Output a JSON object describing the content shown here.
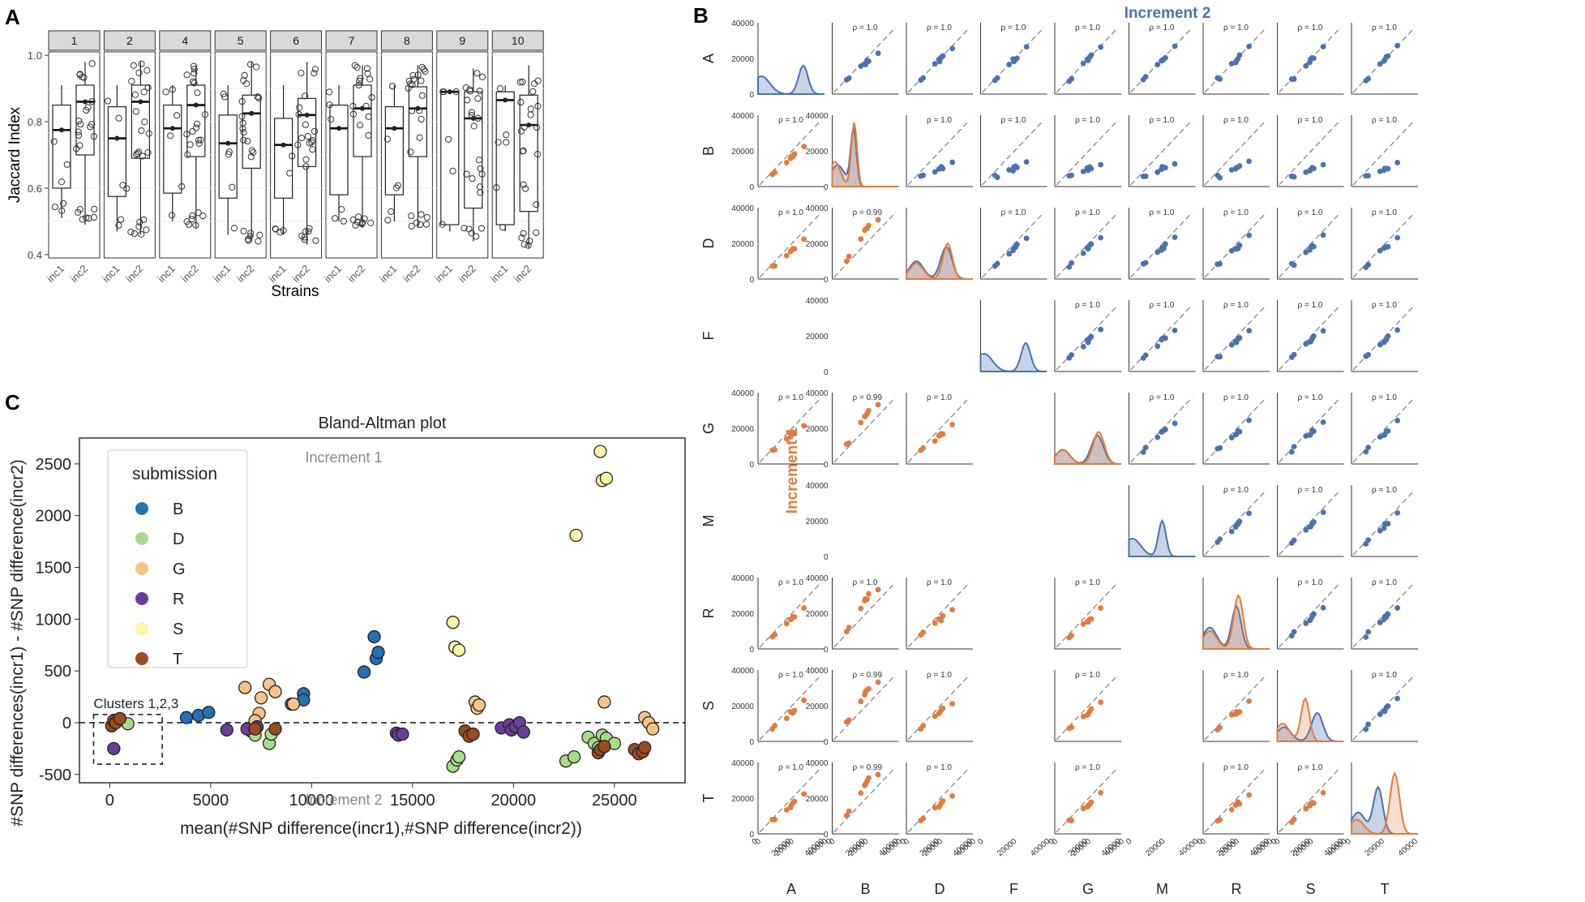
{
  "panel_labels": {
    "a": "A",
    "b": "B",
    "c": "C"
  },
  "chart_data": [
    {
      "panel": "A",
      "type": "box",
      "facets": [
        "1",
        "2",
        "4",
        "5",
        "6",
        "7",
        "8",
        "9",
        "10"
      ],
      "groups": [
        "inc1",
        "inc2"
      ],
      "xlabel": "Strains",
      "ylabel": "Jaccard Index",
      "ylim": [
        0.39,
        1.01
      ],
      "yticks": [
        "0.4",
        "0.6",
        "0.8",
        "1.0"
      ],
      "boxes": [
        [
          {
            "q1": 0.6,
            "med": 0.775,
            "q3": 0.85,
            "lo": 0.51,
            "hi": 0.91
          },
          {
            "q1": 0.7,
            "med": 0.86,
            "q3": 0.91,
            "lo": 0.49,
            "hi": 0.98
          }
        ],
        [
          {
            "q1": 0.575,
            "med": 0.75,
            "q3": 0.845,
            "lo": 0.47,
            "hi": 0.91
          },
          {
            "q1": 0.69,
            "med": 0.86,
            "q3": 0.91,
            "lo": 0.46,
            "hi": 0.98
          }
        ],
        [
          {
            "q1": 0.585,
            "med": 0.78,
            "q3": 0.85,
            "lo": 0.5,
            "hi": 0.91
          },
          {
            "q1": 0.695,
            "med": 0.85,
            "q3": 0.91,
            "lo": 0.48,
            "hi": 0.97
          }
        ],
        [
          {
            "q1": 0.57,
            "med": 0.735,
            "q3": 0.82,
            "lo": 0.46,
            "hi": 0.91
          },
          {
            "q1": 0.66,
            "med": 0.825,
            "q3": 0.88,
            "lo": 0.44,
            "hi": 0.98
          }
        ],
        [
          {
            "q1": 0.57,
            "med": 0.73,
            "q3": 0.81,
            "lo": 0.46,
            "hi": 0.91
          },
          {
            "q1": 0.665,
            "med": 0.82,
            "q3": 0.87,
            "lo": 0.43,
            "hi": 0.98
          }
        ],
        [
          {
            "q1": 0.58,
            "med": 0.78,
            "q3": 0.85,
            "lo": 0.5,
            "hi": 0.91
          },
          {
            "q1": 0.695,
            "med": 0.84,
            "q3": 0.91,
            "lo": 0.48,
            "hi": 0.97
          }
        ],
        [
          {
            "q1": 0.58,
            "med": 0.78,
            "q3": 0.845,
            "lo": 0.5,
            "hi": 0.91
          },
          {
            "q1": 0.695,
            "med": 0.84,
            "q3": 0.905,
            "lo": 0.48,
            "hi": 0.97
          }
        ],
        [
          {
            "q1": 0.49,
            "med": 0.89,
            "q3": 0.89,
            "lo": 0.47,
            "hi": 0.89
          },
          {
            "q1": 0.54,
            "med": 0.81,
            "q3": 0.89,
            "lo": 0.44,
            "hi": 0.96
          }
        ],
        [
          {
            "q1": 0.49,
            "med": 0.865,
            "q3": 0.89,
            "lo": 0.47,
            "hi": 0.91
          },
          {
            "q1": 0.53,
            "med": 0.79,
            "q3": 0.88,
            "lo": 0.42,
            "hi": 0.97
          }
        ]
      ]
    },
    {
      "panel": "B",
      "type": "pairgrid",
      "title_top": "Increment 2",
      "title_left": "Increment 1",
      "labels": [
        "A",
        "B",
        "D",
        "F",
        "G",
        "M",
        "R",
        "S",
        "T"
      ],
      "available": [
        true,
        true,
        true,
        false,
        true,
        false,
        true,
        true,
        true
      ],
      "axis_ticks": [
        "0",
        "20000",
        "40000"
      ],
      "rho_upper": [
        "ρ = 1.0"
      ],
      "rho_lower": [
        [
          "ρ = 0.99"
        ],
        [
          "ρ = 0.99",
          "ρ = 1.0"
        ],
        [
          "ρ = 1.0",
          "ρ = 1.0",
          "ρ = 1.0"
        ],
        [
          "ρ = 0.99",
          "ρ = 1.0",
          "ρ = 1.0",
          "ρ = 1.0"
        ],
        [
          "ρ = 0.99",
          "ρ = 1.0",
          "ρ = 1.0",
          "ρ = 1.0",
          "ρ = 1.0"
        ]
      ],
      "colors": {
        "incr2": "#4a72b0",
        "incr1": "#e07c3f"
      }
    },
    {
      "panel": "C",
      "type": "scatter",
      "title": "Bland-Altman plot",
      "xlabel": "mean(#SNP difference(incr1),#SNP difference(incr2))",
      "ylabel": "#SNP differences(incr1) - #SNP difference(incr2)",
      "xlim": [
        -1500,
        28500
      ],
      "ylim": [
        -580,
        2750
      ],
      "xticks": [
        "0",
        "5000",
        "10000",
        "15000",
        "20000",
        "25000"
      ],
      "yticks": [
        "-500",
        "0",
        "500",
        "1000",
        "1500",
        "2000",
        "2500"
      ],
      "legend_title": "submission",
      "annotations": {
        "top": "Increment 1",
        "bottom": "Increment 2",
        "cluster": "Clusters 1,2,3"
      },
      "series": [
        {
          "name": "B",
          "color": "#2471b3",
          "points": [
            [
              400,
              20
            ],
            [
              3800,
              50
            ],
            [
              4400,
              70
            ],
            [
              4900,
              100
            ],
            [
              9000,
              180
            ],
            [
              9600,
              280
            ],
            [
              9600,
              220
            ],
            [
              12600,
              490
            ],
            [
              13100,
              830
            ],
            [
              13200,
              620
            ],
            [
              13300,
              680
            ]
          ]
        },
        {
          "name": "D",
          "color": "#a8dc8b",
          "points": [
            [
              900,
              -10
            ],
            [
              7000,
              -80
            ],
            [
              7200,
              -120
            ],
            [
              7900,
              -200
            ],
            [
              8000,
              -110
            ],
            [
              17000,
              -420
            ],
            [
              17200,
              -360
            ],
            [
              17300,
              -330
            ],
            [
              22600,
              -370
            ],
            [
              23000,
              -330
            ],
            [
              23700,
              -140
            ],
            [
              24000,
              -200
            ],
            [
              24200,
              -240
            ],
            [
              24400,
              -120
            ],
            [
              24600,
              -150
            ],
            [
              25000,
              -200
            ]
          ]
        },
        {
          "name": "G",
          "color": "#f6c586",
          "points": [
            [
              6700,
              340
            ],
            [
              7500,
              240
            ],
            [
              7900,
              370
            ],
            [
              8200,
              300
            ],
            [
              9100,
              180
            ],
            [
              7400,
              90
            ],
            [
              7200,
              20
            ],
            [
              18100,
              200
            ],
            [
              18200,
              140
            ],
            [
              18300,
              170
            ],
            [
              24500,
              200
            ],
            [
              26500,
              50
            ],
            [
              26700,
              0
            ],
            [
              26900,
              -60
            ]
          ]
        },
        {
          "name": "R",
          "color": "#6a3d9a",
          "points": [
            [
              200,
              -250
            ],
            [
              5800,
              -70
            ],
            [
              6800,
              -60
            ],
            [
              7300,
              -40
            ],
            [
              14200,
              -100
            ],
            [
              14300,
              -120
            ],
            [
              14500,
              -110
            ],
            [
              19400,
              -50
            ],
            [
              19800,
              -20
            ],
            [
              19900,
              -70
            ],
            [
              20100,
              -40
            ],
            [
              20300,
              0
            ],
            [
              20500,
              -90
            ]
          ]
        },
        {
          "name": "S",
          "color": "#fbf7a7",
          "points": [
            [
              17000,
              970
            ],
            [
              17100,
              730
            ],
            [
              17300,
              700
            ],
            [
              23100,
              1810
            ],
            [
              24300,
              2620
            ],
            [
              24400,
              2340
            ],
            [
              24600,
              2360
            ]
          ]
        },
        {
          "name": "T",
          "color": "#9c4a23",
          "points": [
            [
              100,
              -30
            ],
            [
              200,
              20
            ],
            [
              300,
              0
            ],
            [
              500,
              40
            ],
            [
              7200,
              -60
            ],
            [
              8200,
              -60
            ],
            [
              17600,
              -80
            ],
            [
              17800,
              -130
            ],
            [
              18000,
              -110
            ],
            [
              24200,
              -290
            ],
            [
              24300,
              -260
            ],
            [
              24500,
              -230
            ],
            [
              26000,
              -260
            ],
            [
              26200,
              -300
            ],
            [
              26400,
              -280
            ],
            [
              26500,
              -240
            ]
          ]
        }
      ]
    }
  ]
}
